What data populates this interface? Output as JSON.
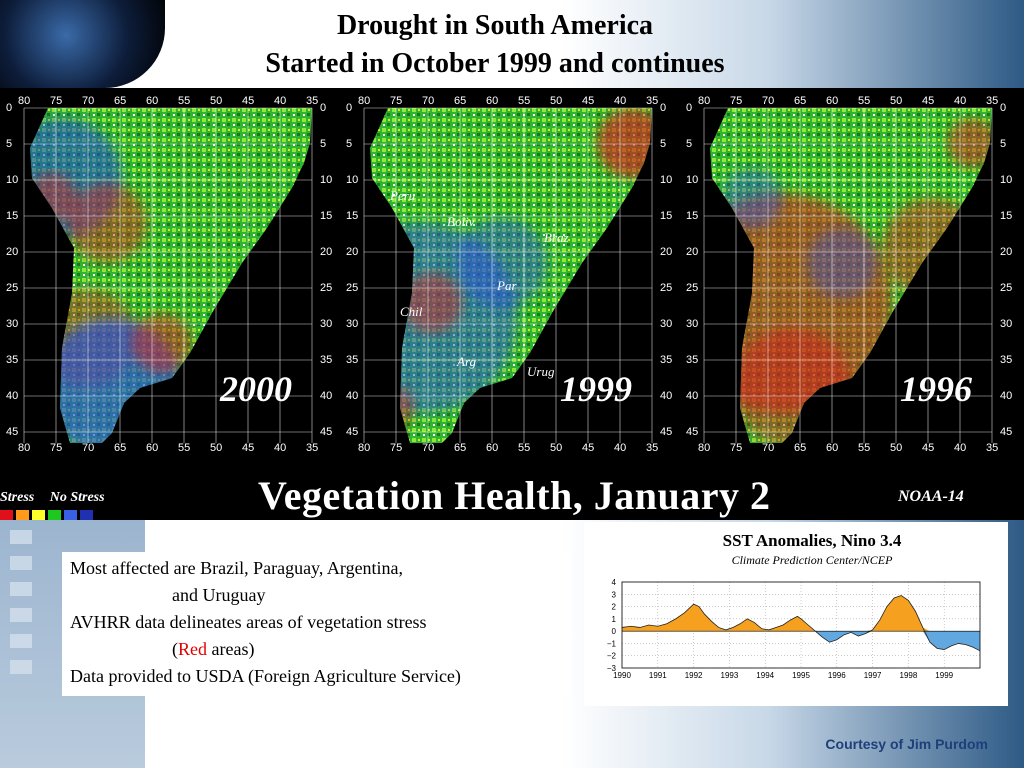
{
  "header": {
    "title_line1": "Drought in South America",
    "title_line2": "Started in October 1999 and continues"
  },
  "maps": {
    "lon_ticks": [
      "80",
      "75",
      "70",
      "65",
      "60",
      "55",
      "50",
      "45",
      "40",
      "35"
    ],
    "lat_ticks": [
      "0",
      "5",
      "10",
      "15",
      "20",
      "25",
      "30",
      "35",
      "40",
      "45"
    ],
    "panels": [
      {
        "year": "2000"
      },
      {
        "year": "1999",
        "places": [
          "Peru",
          "Boliv",
          "Braz",
          "Par",
          "Chil",
          "Arg",
          "Urug"
        ]
      },
      {
        "year": "1996"
      }
    ],
    "banner_title": "Vegetation Health, January 2",
    "satellite": "NOAA-14",
    "legend": {
      "stress": "Stress",
      "no_stress": "No Stress",
      "colors": [
        "#e0101a",
        "#ff9a1a",
        "#ffff2a",
        "#1ec81e",
        "#3a60e6",
        "#2030b0"
      ]
    }
  },
  "notes": {
    "line1": "Most affected are Brazil, Paraguay, Argentina,",
    "line2": "and Uruguay",
    "line3": "AVHRR data delineates areas of vegetation stress",
    "line4_open": "(",
    "line4_red": "Red",
    "line4_rest": " areas)",
    "line5": "Data provided to USDA (Foreign Agriculture Service)",
    "red_color": "#e00000"
  },
  "chart_data": {
    "type": "area",
    "title": "SST Anomalies, Nino 3.4",
    "subtitle": "Climate Prediction Center/NCEP",
    "xlabel": "",
    "ylabel": "",
    "xlim": [
      1990,
      2000
    ],
    "ylim": [
      -3,
      4
    ],
    "x_ticks": [
      "1990",
      "1991",
      "1992",
      "1993",
      "1994",
      "1995",
      "1996",
      "1997",
      "1998",
      "1999"
    ],
    "y_ticks": [
      "4",
      "3",
      "2",
      "1",
      "0",
      "-1",
      "-2",
      "-3"
    ],
    "positive_color": "#f5a01e",
    "negative_color": "#62a8e0",
    "grid": true,
    "series": [
      {
        "x": [
          1990.0,
          1990.25,
          1990.5,
          1990.75,
          1991.0,
          1991.25,
          1991.5,
          1991.75,
          1992.0,
          1992.15,
          1992.3,
          1992.5,
          1992.7,
          1992.9,
          1993.1,
          1993.3,
          1993.5,
          1993.7,
          1993.9,
          1994.1,
          1994.3,
          1994.5,
          1994.7,
          1994.9,
          1995.0,
          1995.2,
          1995.4,
          1995.6,
          1995.8,
          1996.0,
          1996.2,
          1996.4,
          1996.6,
          1996.8,
          1997.0,
          1997.2,
          1997.4,
          1997.6,
          1997.8,
          1998.0,
          1998.2,
          1998.4,
          1998.6,
          1998.8,
          1999.0,
          1999.2,
          1999.4,
          1999.6,
          1999.8,
          2000.0
        ],
        "y": [
          0.3,
          0.4,
          0.3,
          0.5,
          0.4,
          0.6,
          1.0,
          1.5,
          2.2,
          2.0,
          1.4,
          0.8,
          0.3,
          0.1,
          0.3,
          0.6,
          1.0,
          0.7,
          0.2,
          0.1,
          0.3,
          0.5,
          0.9,
          1.2,
          1.0,
          0.5,
          0.0,
          -0.5,
          -0.9,
          -0.7,
          -0.3,
          -0.1,
          -0.4,
          -0.2,
          0.1,
          0.9,
          2.0,
          2.7,
          2.9,
          2.5,
          1.6,
          0.3,
          -0.9,
          -1.4,
          -1.5,
          -1.2,
          -1.0,
          -1.1,
          -1.3,
          -1.6
        ]
      }
    ]
  },
  "footer": {
    "credit": "Courtesy of Jim Purdom"
  }
}
